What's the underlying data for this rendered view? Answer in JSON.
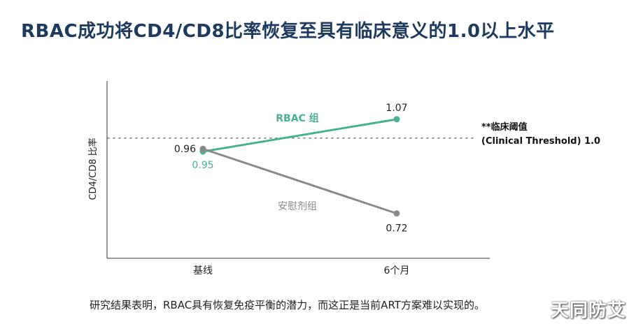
{
  "title": "RBAC成功将CD4/CD8比率恢复至具有临床意义的1.0以上水平",
  "caption": "研究结果表明，RBAC具有恢复免疫平衡的潜力，而这正是当前ART方案难以实现的。",
  "watermark": "天同防艾",
  "chart_data": {
    "type": "line",
    "categories": [
      "基线",
      "6个月"
    ],
    "ylabel": "CD4/CD8 比率",
    "ylim": [
      0.6,
      1.15
    ],
    "grid": false,
    "series": [
      {
        "name": "RBAC 组",
        "values": [
          0.95,
          1.07
        ],
        "color": "#4caf90"
      },
      {
        "name": "安慰剂组",
        "values": [
          0.96,
          0.72
        ],
        "color": "#8a8a8e"
      }
    ],
    "threshold": {
      "value": 1.0,
      "label_line1": "**临床阈值",
      "label_line2": "(Clinical Threshold) 1.0"
    }
  }
}
